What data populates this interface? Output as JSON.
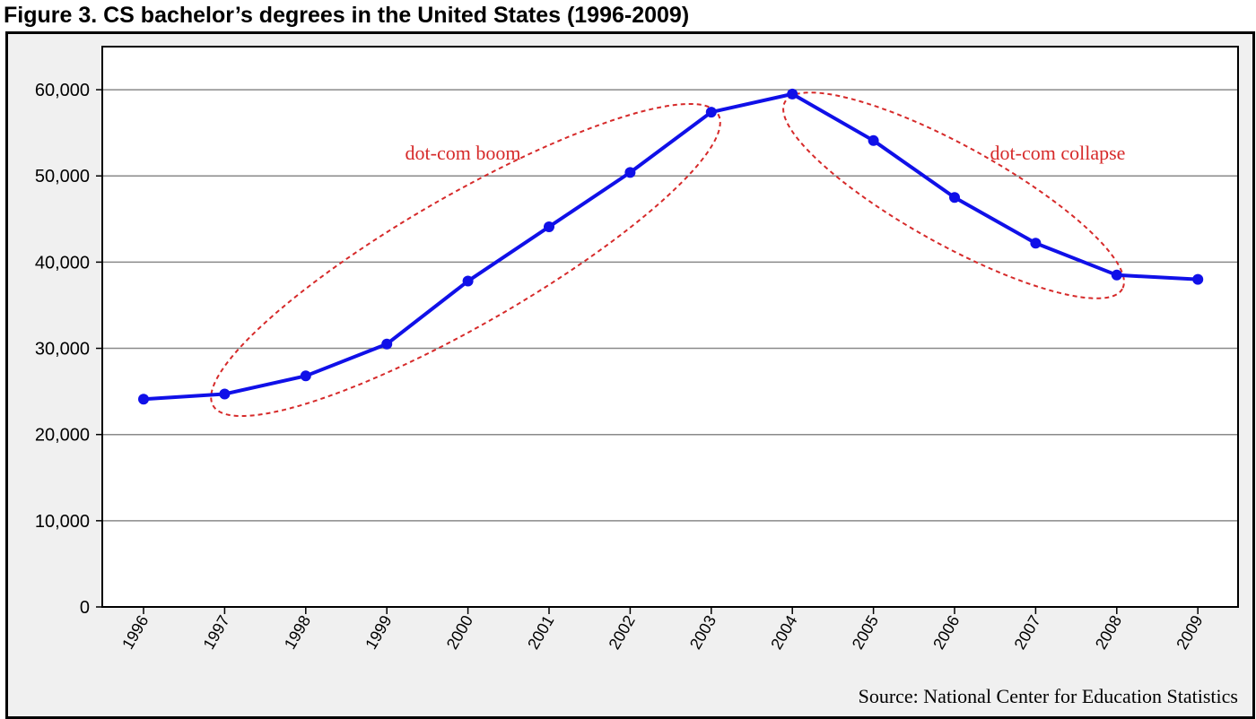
{
  "figure": {
    "title": "Figure 3. CS bachelor’s degrees in the United States (1996-2009)",
    "source": "Source: National Center for Education Statistics"
  },
  "colors": {
    "line": "#1010e8",
    "annotation": "#d62a2a",
    "gridline": "#8a8a8a",
    "plot_background": "#ffffff",
    "frame_background": "#f0f0f0"
  },
  "chart_data": {
    "type": "line",
    "title": "Figure 3. CS bachelor’s degrees in the United States (1996-2009)",
    "xlabel": "",
    "ylabel": "",
    "categories": [
      "1996",
      "1997",
      "1998",
      "1999",
      "2000",
      "2001",
      "2002",
      "2003",
      "2004",
      "2005",
      "2006",
      "2007",
      "2008",
      "2009"
    ],
    "series": [
      {
        "values": [
          24100,
          24700,
          26800,
          30500,
          37800,
          44100,
          50400,
          57400,
          59500,
          54100,
          47500,
          42200,
          38500,
          38000
        ]
      }
    ],
    "ylim": [
      0,
      65000
    ],
    "yticks": [
      0,
      10000,
      20000,
      30000,
      40000,
      50000,
      60000
    ],
    "ytick_labels": [
      "0",
      "10,000",
      "20,000",
      "30,000",
      "40,000",
      "50,000",
      "60,000"
    ],
    "grid": true,
    "legend": "none",
    "annotations": [
      {
        "text": "dot-com boom",
        "from": "1997",
        "to": "2003"
      },
      {
        "text": "dot-com collapse",
        "from": "2004",
        "to": "2008"
      }
    ],
    "source": "Source: National Center for Education Statistics"
  }
}
